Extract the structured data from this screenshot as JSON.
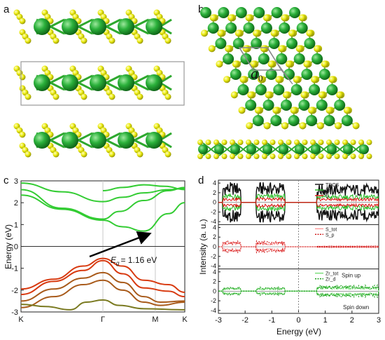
{
  "panels": {
    "a": "a",
    "b": "b",
    "c": "c",
    "d": "d"
  },
  "lattice_label": "a",
  "lattice_label_sub": "0",
  "colors": {
    "zr": "#1f9a2e",
    "s": "#e2e400",
    "bond_zr": "#2a9a2a",
    "frame": "#a0a0a0",
    "arrow": "#000000",
    "band_green": "#33cc33",
    "band_red": "#d83a10",
    "band_brown": "#a85a1a",
    "band_olive": "#7a7a20"
  },
  "chart_data": [
    {
      "panel": "c",
      "type": "line",
      "ylabel": "Energy (eV)",
      "xticks": [
        "K",
        "Γ",
        "M",
        "K"
      ],
      "ylim": [
        -3,
        3
      ],
      "yticks": [
        "3",
        "2",
        "1",
        "0",
        "-1",
        "-2",
        "-3"
      ],
      "fermi_level": 0,
      "annotation": {
        "text": "= 1.16 eV",
        "symbol": "E",
        "subscript": "g",
        "value_ev": 1.16
      },
      "series": [
        {
          "color": "green",
          "points": [
            [
              0,
              2.9
            ],
            [
              0.25,
              2.5
            ],
            [
              0.5,
              2.05
            ],
            [
              0.62,
              2.25
            ],
            [
              0.75,
              2.45
            ],
            [
              0.9,
              2.6
            ],
            [
              1.0,
              2.65
            ]
          ]
        },
        {
          "color": "green",
          "points": [
            [
              0,
              2.6
            ],
            [
              0.25,
              1.75
            ],
            [
              0.5,
              1.25
            ],
            [
              0.6,
              1.6
            ],
            [
              0.75,
              2.1
            ],
            [
              0.9,
              2.55
            ],
            [
              1.0,
              2.7
            ]
          ]
        },
        {
          "color": "green",
          "points": [
            [
              0,
              2.35
            ],
            [
              0.25,
              1.7
            ],
            [
              0.5,
              1.2
            ],
            [
              0.62,
              0.9
            ],
            [
              0.75,
              0.7
            ],
            [
              0.9,
              1.5
            ],
            [
              1.0,
              2.0
            ]
          ]
        },
        {
          "color": "green",
          "points": [
            [
              0.5,
              2.55
            ],
            [
              0.62,
              2.7
            ],
            [
              0.75,
              2.82
            ],
            [
              0.88,
              2.75
            ],
            [
              1.0,
              2.6
            ]
          ]
        },
        {
          "color": "red",
          "points": [
            [
              0,
              -1.95
            ],
            [
              0.2,
              -1.5
            ],
            [
              0.38,
              -0.9
            ],
            [
              0.5,
              -0.55
            ],
            [
              0.62,
              -0.9
            ],
            [
              0.75,
              -1.55
            ],
            [
              0.9,
              -1.75
            ],
            [
              1.0,
              -2.1
            ]
          ]
        },
        {
          "color": "red",
          "points": [
            [
              0,
              -2.2
            ],
            [
              0.2,
              -1.6
            ],
            [
              0.38,
              -1.1
            ],
            [
              0.5,
              -0.65
            ],
            [
              0.62,
              -1.25
            ],
            [
              0.75,
              -1.9
            ],
            [
              0.9,
              -2.05
            ],
            [
              1.0,
              -2.3
            ]
          ]
        },
        {
          "color": "brown",
          "points": [
            [
              0,
              -2.5
            ],
            [
              0.2,
              -1.95
            ],
            [
              0.38,
              -1.45
            ],
            [
              0.5,
              -1.2
            ],
            [
              0.62,
              -1.65
            ],
            [
              0.75,
              -2.3
            ],
            [
              0.85,
              -2.55
            ],
            [
              1.0,
              -2.5
            ]
          ]
        },
        {
          "color": "brown",
          "points": [
            [
              0,
              -2.8
            ],
            [
              0.2,
              -2.3
            ],
            [
              0.38,
              -1.75
            ],
            [
              0.5,
              -1.55
            ],
            [
              0.62,
              -2.0
            ],
            [
              0.75,
              -2.55
            ],
            [
              0.85,
              -2.7
            ],
            [
              1.0,
              -2.55
            ]
          ]
        },
        {
          "color": "olive",
          "points": [
            [
              0,
              -2.65
            ],
            [
              0.15,
              -2.75
            ],
            [
              0.3,
              -2.9
            ],
            [
              0.4,
              -2.55
            ],
            [
              0.5,
              -2.45
            ],
            [
              0.6,
              -2.7
            ],
            [
              0.75,
              -2.85
            ],
            [
              1.0,
              -2.9
            ]
          ]
        }
      ]
    },
    {
      "panel": "d",
      "type": "line",
      "xlabel": "Energy (eV)",
      "ylabel": "Intensity (a. u.)",
      "xlim": [
        -3,
        3
      ],
      "xticks": [
        "-3",
        "-2",
        "-1",
        "0",
        "1",
        "2",
        "3"
      ],
      "subplots": [
        {
          "yticks": [
            "4",
            "2",
            "0",
            "-2",
            "-4"
          ],
          "legend": [
            "TDOS",
            "Zr",
            "S"
          ],
          "legend_colors": [
            "#111111",
            "#22bb22",
            "#dd1111"
          ]
        },
        {
          "yticks": [
            "4",
            "2",
            "0",
            "-2",
            "-4"
          ],
          "legend": [
            "S_tot",
            "S_p"
          ],
          "legend_colors": [
            "#ff9999",
            "#cc1111"
          ]
        },
        {
          "yticks": [
            "4",
            "2",
            "0",
            "-2",
            "-4"
          ],
          "legend": [
            "Zr_tot",
            "Zr_d"
          ],
          "legend_colors": [
            "#77dd77",
            "#119911"
          ],
          "annotations": [
            "Spin up",
            "Spin down"
          ]
        }
      ]
    }
  ]
}
